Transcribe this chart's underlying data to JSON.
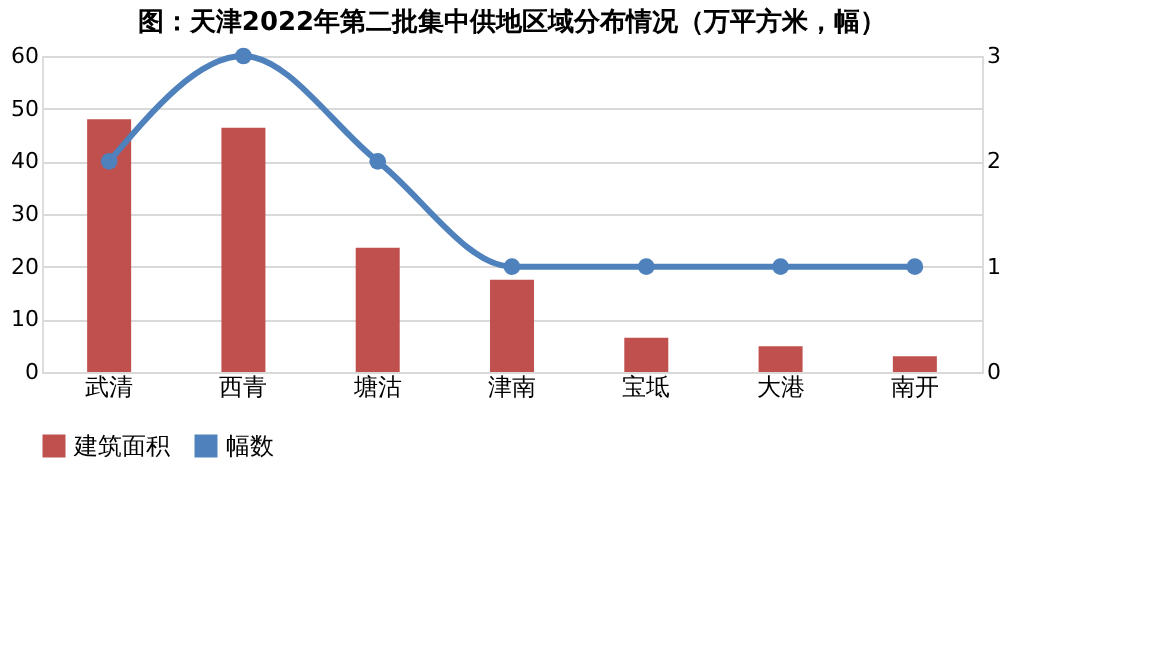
{
  "chart_data": {
    "type": "bar",
    "title": "图：天津2022年第二批集中供地区域分布情况（万平方米，幅）",
    "categories": [
      "武清",
      "西青",
      "塘沽",
      "津南",
      "宝坻",
      "大港",
      "南开"
    ],
    "series": [
      {
        "name": "建筑面积",
        "color": "#c0504d",
        "values": [
          48,
          46.4,
          23.6,
          17.5,
          6.5,
          4.9,
          3.0
        ]
      },
      {
        "name": "幅数",
        "type": "line",
        "axis": "y2",
        "color": "#4f81bd",
        "marker": "circle",
        "values": [
          2,
          3,
          2,
          1,
          1,
          1,
          1
        ]
      }
    ],
    "ylim": [
      0,
      60
    ],
    "yticks": [
      0,
      10,
      20,
      30,
      40,
      50,
      60
    ],
    "y2lim": [
      0,
      3
    ],
    "y2ticks": [
      0,
      1,
      2,
      3
    ],
    "grid": "y",
    "legend": "bottom"
  }
}
